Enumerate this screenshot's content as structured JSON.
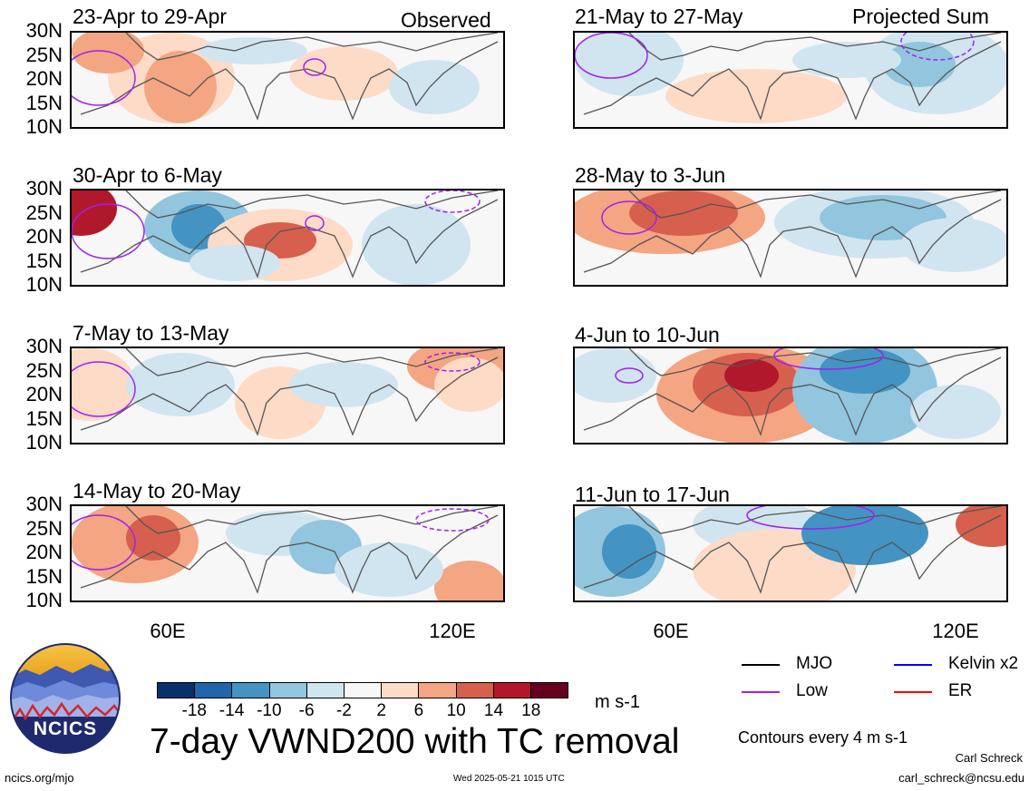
{
  "panels": [
    {
      "id": "p1",
      "title": "23-Apr to 29-Apr",
      "label": "Observed"
    },
    {
      "id": "p2",
      "title": "30-Apr to 6-May",
      "label": ""
    },
    {
      "id": "p3",
      "title": "7-May to 13-May",
      "label": ""
    },
    {
      "id": "p4",
      "title": "14-May to 20-May",
      "label": ""
    },
    {
      "id": "p5",
      "title": "21-May to 27-May",
      "label": "Projected Sum"
    },
    {
      "id": "p6",
      "title": "28-May to 3-Jun",
      "label": ""
    },
    {
      "id": "p7",
      "title": "4-Jun to 10-Jun",
      "label": ""
    },
    {
      "id": "p8",
      "title": "11-Jun to 17-Jun",
      "label": ""
    }
  ],
  "lat_labels": [
    "30N",
    "25N",
    "20N",
    "15N",
    "10N"
  ],
  "lon_labels": [
    "60E",
    "120E"
  ],
  "colorbar": {
    "ticks": [
      "-18",
      "-14",
      "-10",
      "-6",
      "-2",
      "2",
      "6",
      "10",
      "14",
      "18"
    ],
    "units": "m s-1",
    "colors": [
      "#08306b",
      "#2166ac",
      "#4393c3",
      "#92c5de",
      "#d1e5f0",
      "#f7f7f7",
      "#fddbc7",
      "#f4a582",
      "#d6604d",
      "#b2182b",
      "#67001f"
    ]
  },
  "legend": {
    "items": [
      {
        "label": "MJO",
        "color": "#000000"
      },
      {
        "label": "Kelvin x2",
        "color": "#0000ff"
      },
      {
        "label": "Low",
        "color": "#a020f0"
      },
      {
        "label": "ER",
        "color": "#ff0000"
      }
    ],
    "contours_note": "Contours every 4 m s-1"
  },
  "main_title": "7-day VWND200 with TC removal",
  "logo_text": "NCICS",
  "footer": {
    "url": "ncics.org/mjo",
    "timestamp": "Wed 2025-05-21 1015 UTC",
    "author": "Carl Schreck",
    "email": "carl_schreck@ncsu.edu"
  }
}
